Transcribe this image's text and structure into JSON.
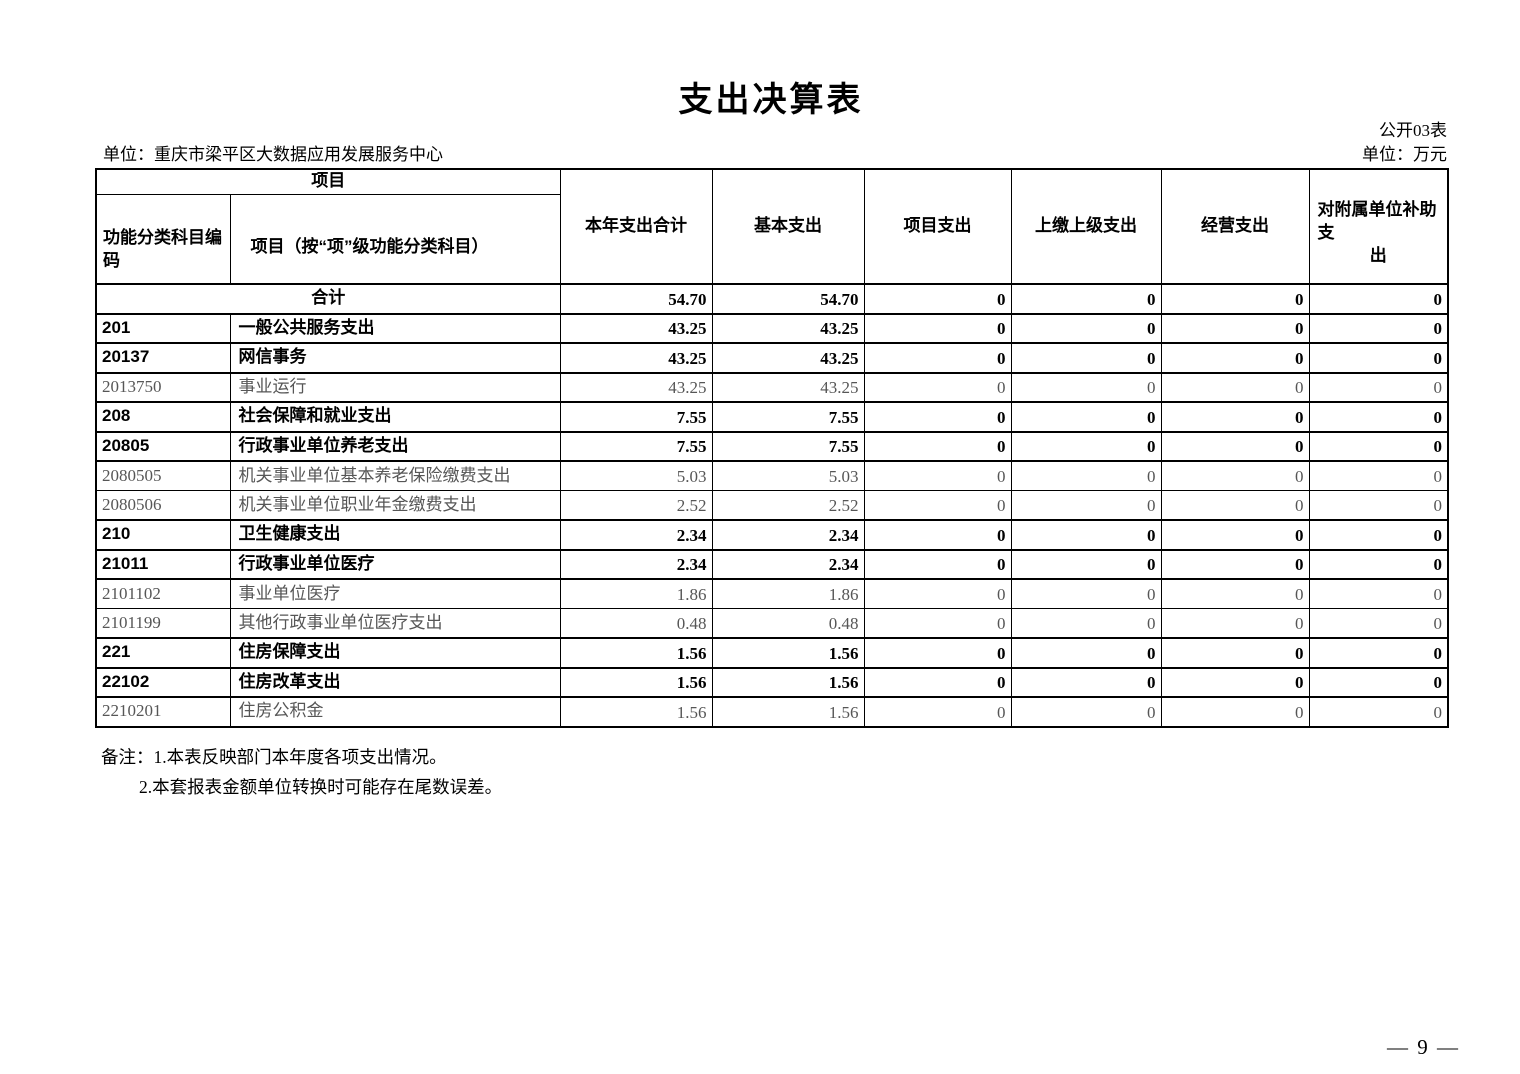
{
  "page": {
    "title": "支出决算表",
    "form_code": "公开03表",
    "org": "单位：重庆市梁平区大数据应用发展服务中心",
    "unit": "单位：万元",
    "page_number": "— 9 —"
  },
  "table": {
    "header": {
      "group": "项目",
      "code": "功能分类科目编码",
      "item": "项目（按“项”级功能分类科目）",
      "total": "本年支出合计",
      "basic": "基本支出",
      "project": "项目支出",
      "upper": "上缴上级支出",
      "operating": "经营支出",
      "subsidy_main": "对附属单位补助支",
      "subsidy_tail": "出"
    },
    "rows": [
      {
        "style": "total",
        "code": "",
        "name": "合计",
        "values": [
          "54.70",
          "54.70",
          "0",
          "0",
          "0",
          "0"
        ]
      },
      {
        "style": "bold",
        "code": "201",
        "name": "一般公共服务支出",
        "values": [
          "43.25",
          "43.25",
          "0",
          "0",
          "0",
          "0"
        ]
      },
      {
        "style": "bold",
        "code": "20137",
        "name": "网信事务",
        "values": [
          "43.25",
          "43.25",
          "0",
          "0",
          "0",
          "0"
        ]
      },
      {
        "style": "light",
        "code": "2013750",
        "name": "事业运行",
        "values": [
          "43.25",
          "43.25",
          "0",
          "0",
          "0",
          "0"
        ]
      },
      {
        "style": "bold",
        "code": "208",
        "name": "社会保障和就业支出",
        "values": [
          "7.55",
          "7.55",
          "0",
          "0",
          "0",
          "0"
        ]
      },
      {
        "style": "bold",
        "code": "20805",
        "name": "行政事业单位养老支出",
        "values": [
          "7.55",
          "7.55",
          "0",
          "0",
          "0",
          "0"
        ]
      },
      {
        "style": "light",
        "code": "2080505",
        "name": "机关事业单位基本养老保险缴费支出",
        "values": [
          "5.03",
          "5.03",
          "0",
          "0",
          "0",
          "0"
        ]
      },
      {
        "style": "light",
        "code": "2080506",
        "name": "机关事业单位职业年金缴费支出",
        "values": [
          "2.52",
          "2.52",
          "0",
          "0",
          "0",
          "0"
        ]
      },
      {
        "style": "bold",
        "code": "210",
        "name": "卫生健康支出",
        "values": [
          "2.34",
          "2.34",
          "0",
          "0",
          "0",
          "0"
        ]
      },
      {
        "style": "bold",
        "code": "21011",
        "name": "行政事业单位医疗",
        "values": [
          "2.34",
          "2.34",
          "0",
          "0",
          "0",
          "0"
        ]
      },
      {
        "style": "light",
        "code": "2101102",
        "name": "事业单位医疗",
        "values": [
          "1.86",
          "1.86",
          "0",
          "0",
          "0",
          "0"
        ]
      },
      {
        "style": "light",
        "code": "2101199",
        "name": "其他行政事业单位医疗支出",
        "values": [
          "0.48",
          "0.48",
          "0",
          "0",
          "0",
          "0"
        ]
      },
      {
        "style": "bold",
        "code": "221",
        "name": "住房保障支出",
        "values": [
          "1.56",
          "1.56",
          "0",
          "0",
          "0",
          "0"
        ]
      },
      {
        "style": "bold",
        "code": "22102",
        "name": "住房改革支出",
        "values": [
          "1.56",
          "1.56",
          "0",
          "0",
          "0",
          "0"
        ]
      },
      {
        "style": "light",
        "code": "2210201",
        "name": "住房公积金",
        "values": [
          "1.56",
          "1.56",
          "0",
          "0",
          "0",
          "0"
        ]
      }
    ]
  },
  "notes": {
    "line1": "备注：1.本表反映部门本年度各项支出情况。",
    "line2": "2.本套报表金额单位转换时可能存在尾数误差。"
  }
}
